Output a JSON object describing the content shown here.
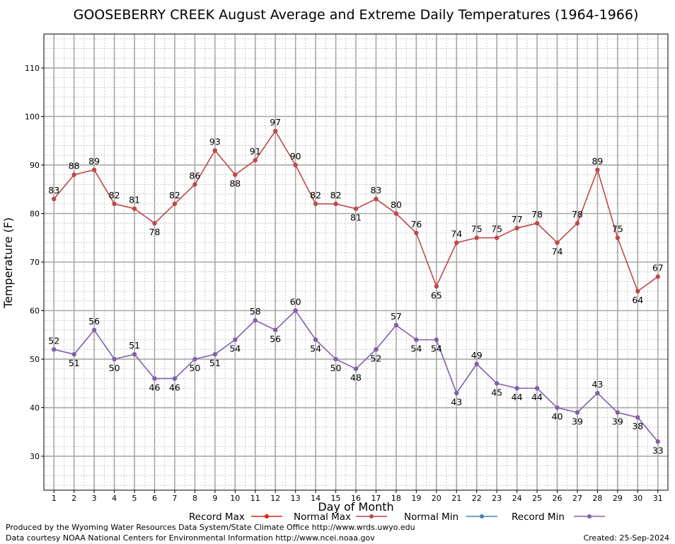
{
  "chart_data": {
    "type": "line",
    "title": "GOOSEBERRY CREEK August Average and Extreme Daily Temperatures (1964-1966)",
    "xlabel": "Day of Month",
    "ylabel": "Temperature (F)",
    "xlim": [
      0.5,
      31.5
    ],
    "ylim": [
      23,
      117
    ],
    "yticks": [
      30,
      40,
      50,
      60,
      70,
      80,
      90,
      100,
      110
    ],
    "x": [
      1,
      2,
      3,
      4,
      5,
      6,
      7,
      8,
      9,
      10,
      11,
      12,
      13,
      14,
      15,
      16,
      17,
      18,
      19,
      20,
      21,
      22,
      23,
      24,
      25,
      26,
      27,
      28,
      29,
      30,
      31
    ],
    "grid": true,
    "legend_position": "bottom",
    "legend": [
      {
        "name": "Record Max",
        "color": "#e02020"
      },
      {
        "name": "Normal Max",
        "color": "#c04848"
      },
      {
        "name": "Normal Min",
        "color": "#4682b4"
      },
      {
        "name": "Record Min",
        "color": "#8060a8"
      }
    ],
    "series": [
      {
        "name": "Normal Max",
        "color": "#c04848",
        "values": [
          83,
          88,
          89,
          82,
          81,
          78,
          82,
          86,
          93,
          88,
          91,
          97,
          90,
          82,
          82,
          81,
          83,
          80,
          76,
          65,
          74,
          75,
          75,
          77,
          78,
          74,
          78,
          89,
          75,
          64,
          67
        ]
      },
      {
        "name": "Record Min",
        "color": "#8060a8",
        "values": [
          52,
          51,
          56,
          50,
          51,
          46,
          46,
          50,
          51,
          54,
          58,
          56,
          60,
          54,
          50,
          48,
          52,
          57,
          54,
          54,
          43,
          49,
          45,
          44,
          44,
          40,
          39,
          43,
          39,
          38,
          33
        ]
      }
    ]
  },
  "footer": {
    "line1": "Produced by the Wyoming Water Resources Data System/State Climate Office http://www.wrds.uwyo.edu",
    "line2": "Data courtesy NOAA National Centers for Environmental Information http://www.ncei.noaa.gov",
    "created": "Created:  25-Sep-2024"
  }
}
